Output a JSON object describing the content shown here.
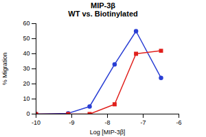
{
  "chart_data": {
    "type": "line",
    "title": "MIP-3β",
    "subtitle": "WT vs. Biotinylated",
    "x_label": "Log [MIP-3β]",
    "y_label": "% Migration",
    "series": [
      {
        "color": "#2a3fd4",
        "marker": "circle",
        "x": [
          -10,
          -9.1,
          -8.5,
          -7.8,
          -7.2,
          -6.5
        ],
        "values": [
          0,
          0.5,
          5,
          33,
          55,
          24
        ]
      },
      {
        "color": "#e0201c",
        "marker": "square",
        "x": [
          -10,
          -9.1,
          -8.5,
          -7.8,
          -7.2,
          -6.5
        ],
        "values": [
          0,
          0,
          0,
          6.5,
          40,
          42
        ]
      }
    ],
    "xlim": [
      -10,
      -6
    ],
    "xticks": [
      -10,
      -9,
      -8,
      -7,
      -6
    ],
    "ylim": [
      0,
      60
    ],
    "yticks": [
      0,
      10,
      20,
      30,
      40,
      50,
      60
    ],
    "grid": false
  }
}
